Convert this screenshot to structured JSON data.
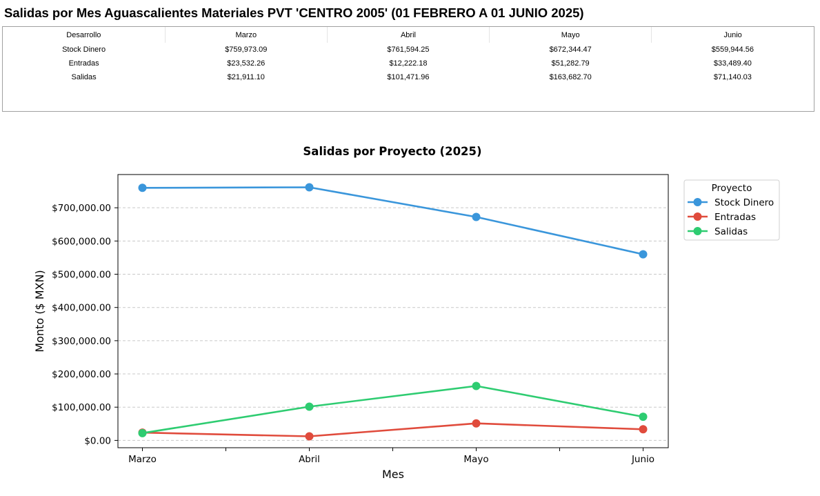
{
  "page": {
    "title": "Salidas por Mes Aguascalientes Materiales PVT 'CENTRO 2005' (01 FEBRERO A 01 JUNIO 2025)"
  },
  "table": {
    "headers": [
      "Desarrollo",
      "Marzo",
      "Abril",
      "Mayo",
      "Junio"
    ],
    "rows": [
      [
        "Stock Dinero",
        "$759,973.09",
        "$761,594.25",
        "$672,344.47",
        "$559,944.56"
      ],
      [
        "Entradas",
        "$23,532.26",
        "$12,222.18",
        "$51,282.79",
        "$33,489.40"
      ],
      [
        "Salidas",
        "$21,911.10",
        "$101,471.96",
        "$163,682.70",
        "$71,140.03"
      ]
    ]
  },
  "chart_data": {
    "type": "line",
    "title": "Salidas por Proyecto (2025)",
    "xlabel": "Mes",
    "ylabel": "Monto ($ MXN)",
    "categories": [
      "Marzo",
      "Abril",
      "Mayo",
      "Junio"
    ],
    "ylim": [
      -22000,
      800000
    ],
    "yticks": [
      0,
      100000,
      200000,
      300000,
      400000,
      500000,
      600000,
      700000
    ],
    "ytick_labels": [
      "$0.00",
      "$100,000.00",
      "$200,000.00",
      "$300,000.00",
      "$400,000.00",
      "$500,000.00",
      "$600,000.00",
      "$700,000.00"
    ],
    "grid": "horizontal dashed",
    "legend": {
      "title": "Proyecto",
      "placement": "outside-right-top"
    },
    "series": [
      {
        "name": "Stock Dinero",
        "color": "#3a96db",
        "values": [
          759973.09,
          761594.25,
          672344.47,
          559944.56
        ]
      },
      {
        "name": "Entradas",
        "color": "#e04b3c",
        "values": [
          23532.26,
          12222.18,
          51282.79,
          33489.4
        ]
      },
      {
        "name": "Salidas",
        "color": "#2ecc71",
        "values": [
          21911.1,
          101471.96,
          163682.7,
          71140.03
        ]
      }
    ]
  }
}
